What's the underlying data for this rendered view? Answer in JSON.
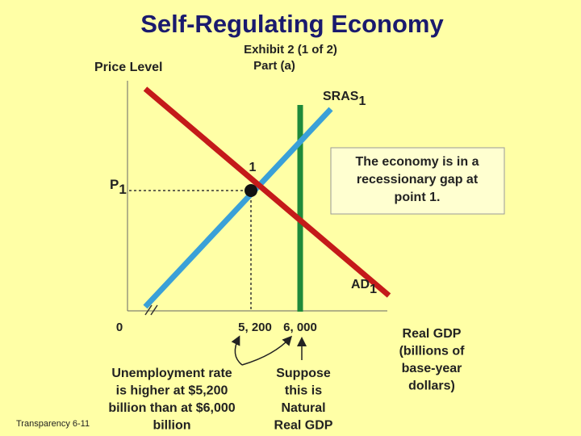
{
  "title": "Self-Regulating Economy",
  "subtitle": [
    "Exhibit 2 (1 of 2)",
    "Part (a)"
  ],
  "y_axis_label": "Price Level",
  "x_axis_label": [
    "Real GDP",
    "(billions of",
    "base-year",
    "dollars)"
  ],
  "sras": {
    "name": "SRAS",
    "subscript": "1"
  },
  "ad": {
    "name": "AD",
    "subscript": "1"
  },
  "price": {
    "name": "P",
    "subscript": "1"
  },
  "origin": "0",
  "gdp_values": [
    "5, 200",
    "6, 000"
  ],
  "point_label": "1",
  "note": [
    "The economy is in a",
    "recessionary gap at",
    "point 1."
  ],
  "annotation_left": [
    "Unemployment rate",
    "is higher at $5,200",
    "billion than at $6,000",
    "billion"
  ],
  "annotation_right": [
    "Suppose",
    "this is",
    "Natural",
    "Real GDP"
  ],
  "footer": "Transparency 6-11"
}
